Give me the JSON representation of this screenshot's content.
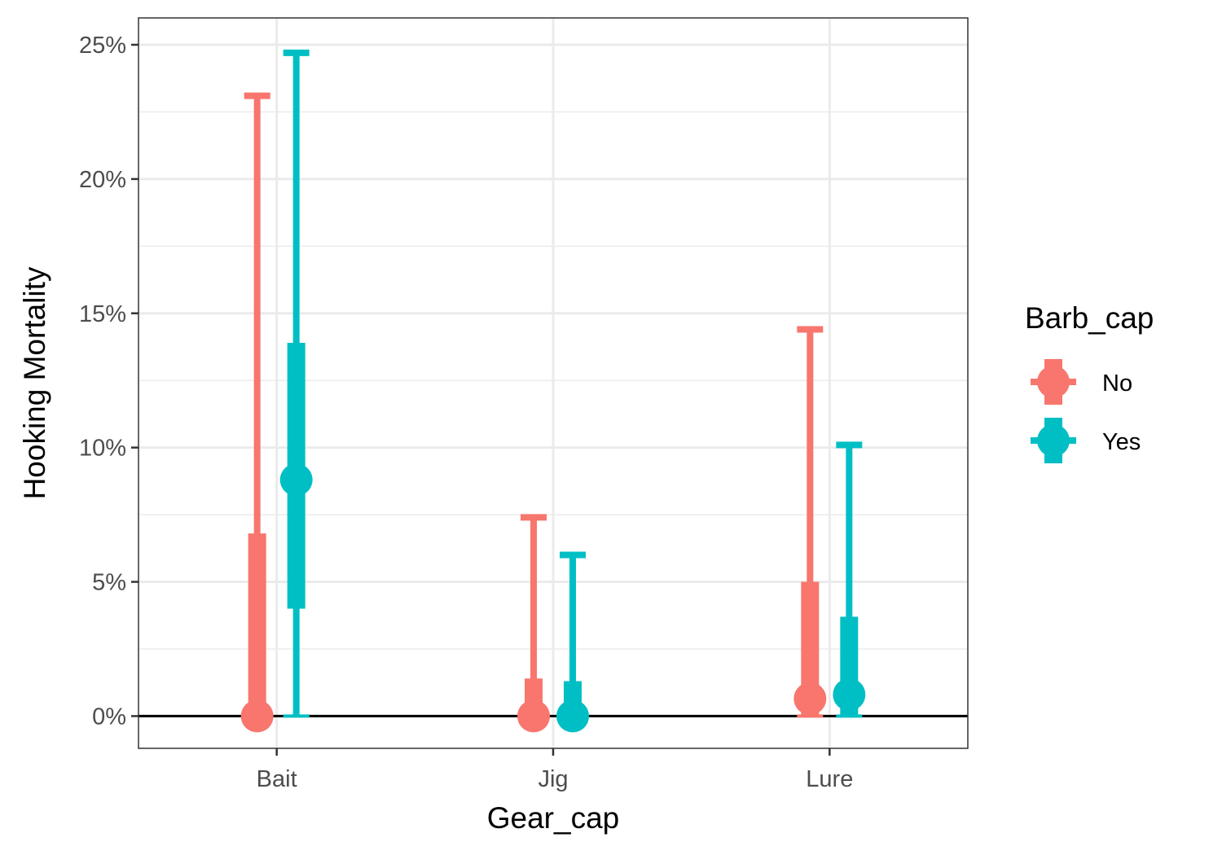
{
  "chart_data": {
    "type": "pointrange",
    "xlabel": "Gear_cap",
    "ylabel": "Hooking Mortality",
    "categories": [
      "Bait",
      "Jig",
      "Lure"
    ],
    "y_ticks": [
      "0%",
      "5%",
      "10%",
      "15%",
      "20%",
      "25%"
    ],
    "ylim": [
      -1.2,
      26
    ],
    "grid": true,
    "reference_line_y": 0,
    "legend": {
      "title": "Barb_cap",
      "position": "right"
    },
    "series": [
      {
        "name": "No",
        "color": "#F8766D",
        "points": [
          {
            "category": "Bait",
            "estimate": 0.0,
            "inner_low": 0.0,
            "inner_high": 6.8,
            "outer_low": 0.0,
            "outer_high": 23.1
          },
          {
            "category": "Jig",
            "estimate": 0.0,
            "inner_low": 0.0,
            "inner_high": 1.4,
            "outer_low": 0.0,
            "outer_high": 7.4
          },
          {
            "category": "Lure",
            "estimate": 0.65,
            "inner_low": 0.0,
            "inner_high": 5.0,
            "outer_low": 0.0,
            "outer_high": 14.4
          }
        ]
      },
      {
        "name": "Yes",
        "color": "#00BFC4",
        "points": [
          {
            "category": "Bait",
            "estimate": 8.8,
            "inner_low": 4.0,
            "inner_high": 13.9,
            "outer_low": 0.0,
            "outer_high": 24.7
          },
          {
            "category": "Jig",
            "estimate": 0.0,
            "inner_low": 0.0,
            "inner_high": 1.3,
            "outer_low": 0.0,
            "outer_high": 6.0
          },
          {
            "category": "Lure",
            "estimate": 0.8,
            "inner_low": 0.0,
            "inner_high": 3.7,
            "outer_low": 0.0,
            "outer_high": 10.1
          }
        ]
      }
    ]
  }
}
